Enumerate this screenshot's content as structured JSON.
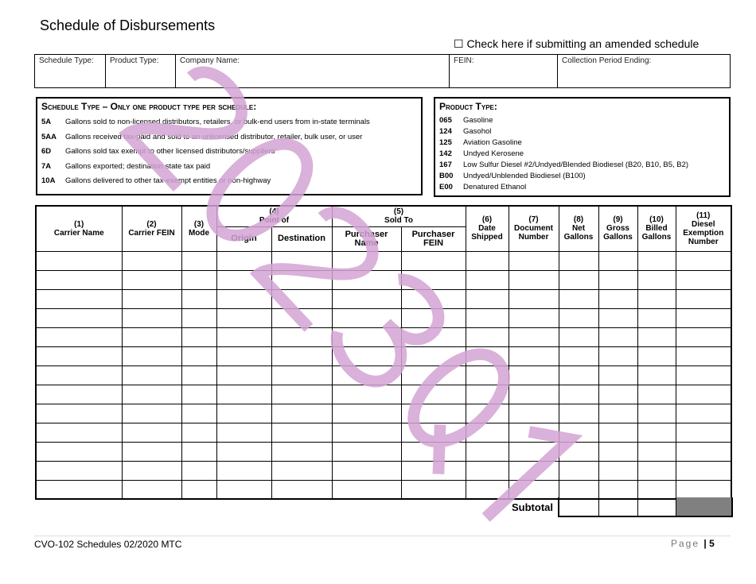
{
  "title": "Schedule of Disbursements",
  "amended": "☐ Check here if submitting an amended schedule",
  "info_fields": [
    "Schedule Type:",
    "Product Type:",
    "Company Name:",
    "FEIN:",
    "Collection Period Ending:"
  ],
  "schedule_type": {
    "heading": "Schedule Type – Only one product type per schedule:",
    "items": [
      {
        "code": "5A",
        "text": "Gallons sold to non-licensed distributors, retailers, or bulk-end users from in-state terminals"
      },
      {
        "code": "5AA",
        "text": "Gallons received tax-paid and sold to an unlicensed distributor, retailer, bulk user, or user"
      },
      {
        "code": "6D",
        "text": "Gallons sold tax exempt to other licensed distributors/suppliers"
      },
      {
        "code": "7A",
        "text": "Gallons exported; destination state tax paid"
      },
      {
        "code": "10A",
        "text": "Gallons delivered to other tax-exempt entities or non-highway"
      }
    ]
  },
  "product_type": {
    "heading": "Product Type:",
    "items": [
      {
        "code": "065",
        "text": "Gasoline"
      },
      {
        "code": "124",
        "text": "Gasohol"
      },
      {
        "code": "125",
        "text": "Aviation Gasoline"
      },
      {
        "code": "142",
        "text": "Undyed Kerosene"
      },
      {
        "code": "167",
        "text": "Low Sulfur Diesel #2/Undyed/Blended Biodiesel (B20, B10, B5, B2)"
      },
      {
        "code": "B00",
        "text": "Undyed/Unblended Biodiesel (B100)"
      },
      {
        "code": "E00",
        "text": "Denatured Ethanol"
      }
    ]
  },
  "table": {
    "c1": "(1)\nCarrier Name",
    "c2": "(2)\nCarrier FEIN",
    "c3": "(3)\nMode",
    "c4": "(4)\nPoint of",
    "c4a": "Origin",
    "c4b": "Destination",
    "c5": "(5)\nSold To",
    "c5a": "Purchaser\nName",
    "c5b": "Purchaser\nFEIN",
    "c6": "(6)\nDate\nShipped",
    "c7": "(7)\nDocument\nNumber",
    "c8": "(8)\nNet\nGallons",
    "c9": "(9)\nGross\nGallons",
    "c10": "(10)\nBilled\nGallons",
    "c11": "(11)\nDiesel\nExemption\nNumber",
    "subtotal": "Subtotal"
  },
  "footer": {
    "left": "CVO-102 Schedules 02/2020 MTC",
    "page_label": "Page",
    "page_number": "| 5"
  },
  "watermark": {
    "text": "2023Q1",
    "color": "#d3a3d3"
  }
}
